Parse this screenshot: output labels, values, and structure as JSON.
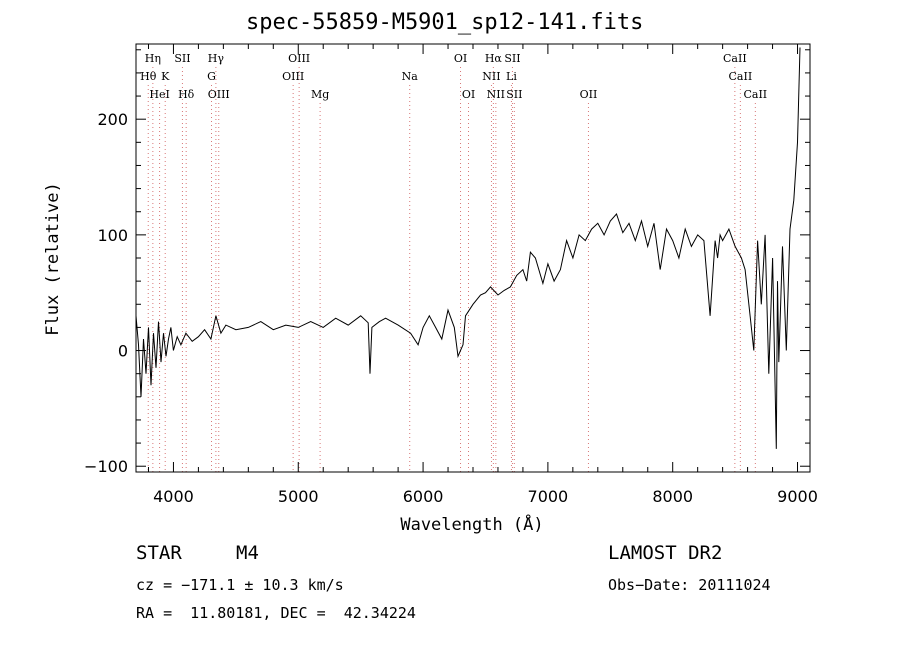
{
  "chart_data": {
    "type": "line",
    "title": "spec-55859-M5901_sp12-141.fits",
    "xlabel": "Wavelength (Å)",
    "ylabel": "Flux (relative)",
    "xlim": [
      3700,
      9100
    ],
    "ylim": [
      -105,
      265
    ],
    "x_ticks": [
      4000,
      5000,
      6000,
      7000,
      8000,
      9000
    ],
    "y_ticks": [
      -100,
      0,
      100,
      200
    ],
    "grid": false,
    "spectrum": {
      "x": [
        3700,
        3720,
        3740,
        3760,
        3780,
        3800,
        3820,
        3840,
        3860,
        3880,
        3900,
        3920,
        3940,
        3960,
        3980,
        4000,
        4030,
        4060,
        4100,
        4150,
        4200,
        4250,
        4300,
        4340,
        4380,
        4420,
        4500,
        4600,
        4700,
        4800,
        4900,
        5000,
        5100,
        5200,
        5300,
        5400,
        5500,
        5560,
        5575,
        5590,
        5650,
        5700,
        5800,
        5900,
        5960,
        6000,
        6050,
        6100,
        6150,
        6200,
        6250,
        6280,
        6300,
        6320,
        6340,
        6400,
        6460,
        6500,
        6540,
        6600,
        6650,
        6700,
        6750,
        6800,
        6830,
        6860,
        6900,
        6960,
        7000,
        7050,
        7100,
        7150,
        7200,
        7250,
        7300,
        7350,
        7400,
        7450,
        7500,
        7550,
        7600,
        7650,
        7700,
        7750,
        7800,
        7850,
        7900,
        7950,
        8000,
        8050,
        8100,
        8150,
        8200,
        8250,
        8300,
        8340,
        8360,
        8380,
        8400,
        8450,
        8500,
        8550,
        8580,
        8620,
        8650,
        8680,
        8710,
        8740,
        8770,
        8800,
        8830,
        8840,
        8850,
        8880,
        8910,
        8940,
        8970,
        9000,
        9020
      ],
      "y": [
        30,
        5,
        -40,
        10,
        -20,
        20,
        -30,
        15,
        -15,
        25,
        -10,
        15,
        -5,
        10,
        20,
        0,
        12,
        5,
        15,
        8,
        12,
        18,
        10,
        30,
        15,
        22,
        18,
        20,
        25,
        18,
        22,
        20,
        25,
        20,
        28,
        22,
        30,
        24,
        -20,
        20,
        25,
        28,
        22,
        15,
        5,
        20,
        30,
        20,
        10,
        35,
        20,
        -5,
        0,
        5,
        30,
        40,
        48,
        50,
        55,
        48,
        52,
        55,
        65,
        70,
        60,
        85,
        80,
        58,
        75,
        60,
        70,
        95,
        80,
        100,
        95,
        105,
        110,
        100,
        112,
        118,
        102,
        110,
        95,
        112,
        90,
        110,
        70,
        105,
        95,
        80,
        105,
        90,
        100,
        95,
        30,
        95,
        80,
        100,
        95,
        105,
        90,
        80,
        70,
        30,
        0,
        95,
        40,
        100,
        -20,
        80,
        -85,
        60,
        -10,
        90,
        0,
        105,
        130,
        180,
        262
      ]
    },
    "lines": [
      {
        "label": "Hη",
        "x": 3835,
        "row": 1
      },
      {
        "label": "Hθ",
        "x": 3798,
        "row": 2
      },
      {
        "label": "K",
        "x": 3934,
        "row": 2
      },
      {
        "label": "HeI",
        "x": 3889,
        "row": 3
      },
      {
        "label": "SII",
        "x": 4072,
        "row": 1
      },
      {
        "label": "Hδ",
        "x": 4102,
        "row": 3
      },
      {
        "label": "Hγ",
        "x": 4340,
        "row": 1
      },
      {
        "label": "G",
        "x": 4305,
        "row": 2
      },
      {
        "label": "OIII",
        "x": 4363,
        "row": 3
      },
      {
        "label": "OIII",
        "x": 5007,
        "row": 1
      },
      {
        "label": "OIII",
        "x": 4959,
        "row": 2
      },
      {
        "label": "Mg",
        "x": 5175,
        "row": 3
      },
      {
        "label": "Na",
        "x": 5893,
        "row": 2
      },
      {
        "label": "OI",
        "x": 6300,
        "row": 1
      },
      {
        "label": "OI",
        "x": 6364,
        "row": 3
      },
      {
        "label": "Hα",
        "x": 6563,
        "row": 1
      },
      {
        "label": "SII",
        "x": 6716,
        "row": 1
      },
      {
        "label": "NII",
        "x": 6548,
        "row": 2
      },
      {
        "label": "Li",
        "x": 6708,
        "row": 2
      },
      {
        "label": "NII",
        "x": 6583,
        "row": 3
      },
      {
        "label": "SII",
        "x": 6731,
        "row": 3
      },
      {
        "label": "OII",
        "x": 7325,
        "row": 3
      },
      {
        "label": "CaII",
        "x": 8498,
        "row": 1
      },
      {
        "label": "CaII",
        "x": 8542,
        "row": 2
      },
      {
        "label": "CaII",
        "x": 8662,
        "row": 3
      }
    ]
  },
  "info": {
    "object_type": "STAR",
    "subclass": "M4",
    "survey": "LAMOST DR2",
    "cz": "cz = −171.1 ± 10.3 km/s",
    "obs_date": "Obs−Date: 20111024",
    "coords": "RA =  11.80181, DEC =  42.34224"
  }
}
